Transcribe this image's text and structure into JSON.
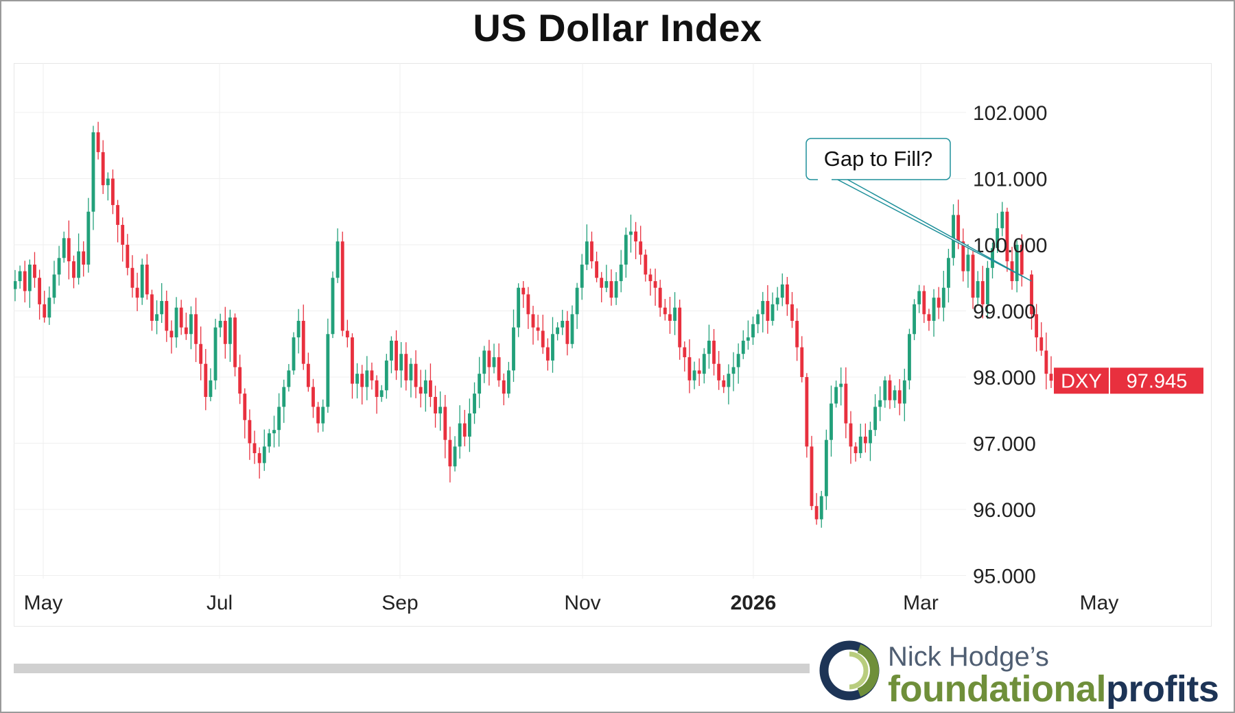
{
  "title": "US Dollar Index",
  "brand": {
    "name": "Nick Hodge’s",
    "word_part1": "foundational",
    "word_part2": "profits",
    "colors": {
      "navy": "#1d3456",
      "green": "#6f8f3a",
      "gray": "#4f5e72"
    }
  },
  "chart_data": {
    "type": "candlestick",
    "title": "US Dollar Index",
    "ylim": [
      95.0,
      102.8
    ],
    "yticks": [
      "102.000",
      "101.000",
      "100.000",
      "99.000",
      "98.000",
      "97.000",
      "96.000",
      "95.000"
    ],
    "xticks": [
      {
        "label": "May",
        "bold": false
      },
      {
        "label": "Jul",
        "bold": false
      },
      {
        "label": "Sep",
        "bold": false
      },
      {
        "label": "Nov",
        "bold": false
      },
      {
        "label": "2026",
        "bold": true
      },
      {
        "label": "Mar",
        "bold": false
      },
      {
        "label": "May",
        "bold": false
      }
    ],
    "grid": true,
    "up_color": "#22a07a",
    "down_color": "#e8303e",
    "ticker": {
      "symbol": "DXY",
      "last": "97.945",
      "value": 97.945,
      "color": "#e8303e"
    },
    "annotation": {
      "text": "Gap to Fill?",
      "border_color": "#1d8f9a",
      "arrow_to_value": 99.45
    },
    "closes": [
      99.45,
      99.6,
      99.3,
      99.7,
      99.5,
      99.1,
      98.9,
      99.2,
      99.55,
      99.8,
      100.1,
      99.75,
      99.5,
      99.9,
      99.7,
      100.5,
      101.7,
      101.4,
      100.9,
      101.0,
      100.6,
      100.3,
      100.0,
      99.65,
      99.35,
      99.2,
      99.7,
      99.25,
      98.85,
      98.95,
      99.15,
      98.7,
      98.6,
      99.05,
      98.75,
      98.65,
      98.95,
      98.5,
      98.2,
      97.7,
      97.95,
      98.75,
      98.85,
      98.5,
      98.9,
      98.15,
      97.75,
      97.35,
      97.0,
      96.85,
      96.7,
      96.95,
      97.15,
      97.2,
      97.55,
      97.85,
      98.1,
      98.6,
      98.85,
      98.2,
      97.85,
      97.55,
      97.3,
      97.55,
      98.65,
      99.5,
      100.05,
      98.7,
      98.6,
      97.9,
      98.05,
      97.85,
      98.1,
      97.95,
      97.7,
      97.8,
      98.25,
      98.55,
      98.1,
      98.35,
      97.95,
      98.2,
      97.85,
      97.75,
      97.95,
      97.7,
      97.45,
      97.55,
      97.05,
      96.65,
      96.95,
      97.3,
      97.1,
      97.45,
      97.75,
      98.05,
      98.4,
      98.15,
      98.3,
      97.95,
      97.75,
      98.1,
      98.75,
      99.35,
      99.25,
      98.95,
      98.75,
      98.7,
      98.45,
      98.25,
      98.65,
      98.75,
      98.85,
      98.5,
      98.95,
      99.35,
      99.7,
      100.05,
      99.75,
      99.5,
      99.35,
      99.45,
      99.2,
      99.45,
      99.7,
      100.15,
      100.2,
      100.05,
      99.85,
      99.55,
      99.45,
      99.35,
      99.05,
      98.95,
      98.85,
      99.05,
      98.45,
      98.3,
      97.95,
      98.1,
      98.05,
      98.35,
      98.55,
      98.2,
      97.95,
      97.85,
      98.05,
      98.15,
      98.35,
      98.55,
      98.6,
      98.8,
      98.95,
      99.15,
      98.85,
      99.1,
      99.2,
      99.4,
      99.1,
      98.85,
      98.45,
      98.0,
      96.95,
      96.05,
      95.85,
      96.2,
      97.05,
      97.6,
      97.85,
      97.9,
      97.3,
      96.95,
      96.85,
      97.1,
      97.0,
      97.2,
      97.55,
      97.65,
      97.95,
      97.65,
      97.8,
      97.6,
      97.95,
      98.65,
      99.1,
      99.3,
      98.95,
      98.85,
      99.2,
      99.05,
      99.35,
      99.8,
      100.45,
      100.05,
      99.6,
      99.85,
      99.2,
      99.45,
      99.1,
      99.65,
      99.95,
      100.25,
      100.5,
      99.75,
      99.45,
      100.0,
      99.55,
      null,
      98.95,
      98.6,
      98.4,
      98.05,
      97.945
    ]
  }
}
